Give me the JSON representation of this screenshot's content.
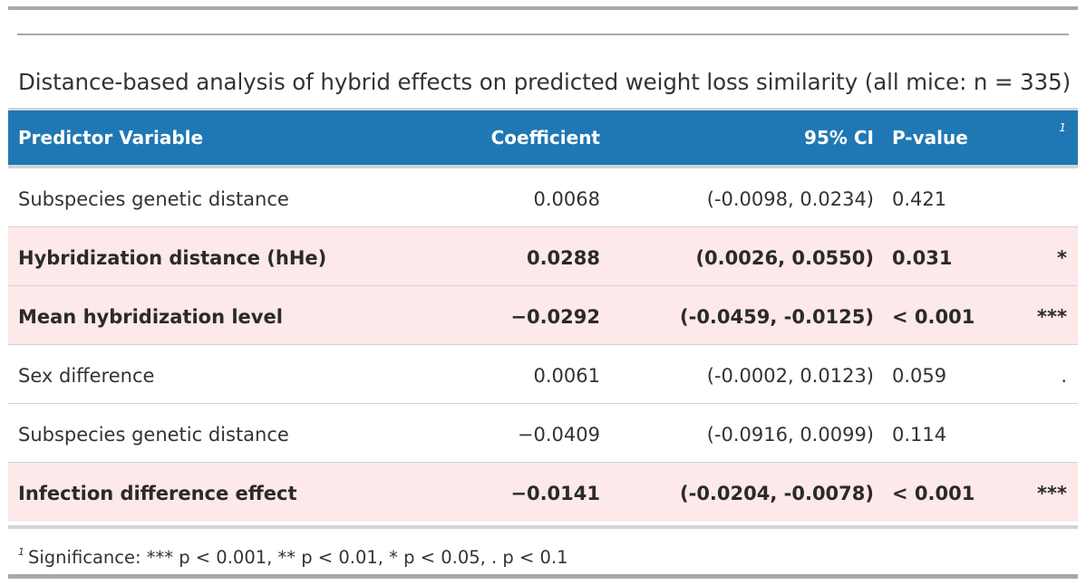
{
  "title": "Distance-based analysis of hybrid effects on predicted weight loss similarity (all mice: n = 335)",
  "columns": {
    "predictor": "Predictor Variable",
    "coefficient": "Coefficient",
    "ci": "95% CI",
    "pvalue": "P-value",
    "footnote_marker": "1"
  },
  "rows": [
    {
      "predictor": "Subspecies genetic distance",
      "coefficient": "0.0068",
      "ci": "(-0.0098, 0.0234)",
      "pvalue": "0.421",
      "significance": "",
      "highlighted": false
    },
    {
      "predictor": "Hybridization distance (hHe)",
      "coefficient": "0.0288",
      "ci": "(0.0026, 0.0550)",
      "pvalue": "0.031",
      "significance": "*",
      "highlighted": true
    },
    {
      "predictor": "Mean hybridization level",
      "coefficient": "−0.0292",
      "ci": "(-0.0459, -0.0125)",
      "pvalue": "< 0.001",
      "significance": "***",
      "highlighted": true
    },
    {
      "predictor": "Sex difference",
      "coefficient": "0.0061",
      "ci": "(-0.0002, 0.0123)",
      "pvalue": "0.059",
      "significance": ".",
      "highlighted": false
    },
    {
      "predictor": "Subspecies genetic distance",
      "coefficient": "−0.0409",
      "ci": "(-0.0916, 0.0099)",
      "pvalue": "0.114",
      "significance": "",
      "highlighted": false
    },
    {
      "predictor": "Infection difference effect",
      "coefficient": "−0.0141",
      "ci": "(-0.0204, -0.0078)",
      "pvalue": "< 0.001",
      "significance": "***",
      "highlighted": true
    }
  ],
  "footnote": {
    "marker": "1",
    "text": "Significance: *** p < 0.001, ** p < 0.01, * p < 0.05, . p < 0.1"
  },
  "colors": {
    "header_background": "#1f78b4",
    "highlight_row": "#fde8ea",
    "rule": "#a8a8a8"
  }
}
